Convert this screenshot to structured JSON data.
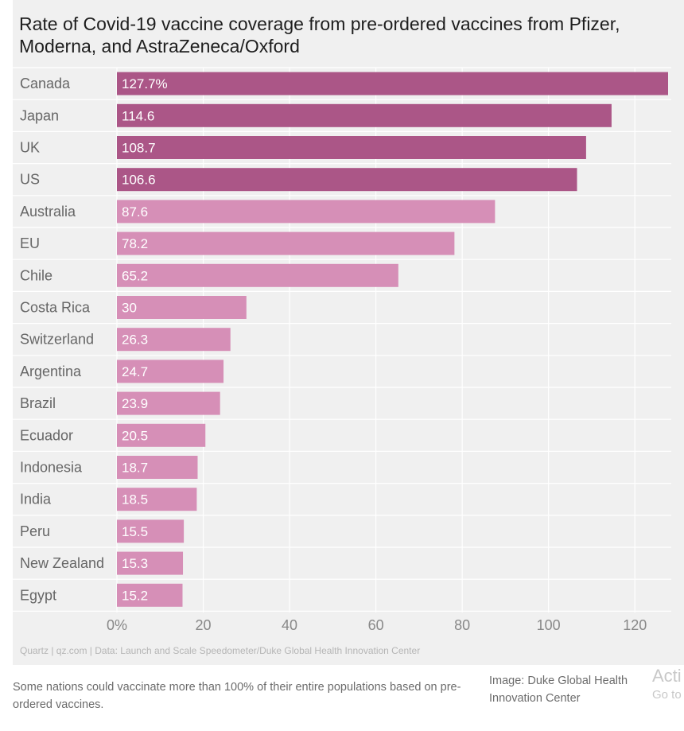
{
  "title": "Rate of Covid-19 vaccine coverage from pre-ordered vaccines from Pfizer, Moderna, and AstraZeneca/Oxford",
  "source": "Quartz | qz.com | Data: Launch and Scale Speedometer/Duke Global Health Innovation Center",
  "caption": "Some nations could vaccinate more than 100% of their entire populations based on pre-ordered vaccines.",
  "credit": "Image: Duke Global Health Innovation Center",
  "overlay": {
    "line1": "Acti",
    "line2": "Go to"
  },
  "colors": {
    "dark_bar": "#ab5687",
    "light_bar": "#d68fb7",
    "panel": "#f0f0f0",
    "grid": "#ffffff"
  },
  "chart_data": {
    "type": "bar",
    "orientation": "horizontal",
    "title": "Rate of Covid-19 vaccine coverage from pre-ordered vaccines from Pfizer, Moderna, and AstraZeneca/Oxford",
    "categories": [
      "Canada",
      "Japan",
      "UK",
      "US",
      "Australia",
      "EU",
      "Chile",
      "Costa Rica",
      "Switzerland",
      "Argentina",
      "Brazil",
      "Ecuador",
      "Indonesia",
      "India",
      "Peru",
      "New Zealand",
      "Egypt"
    ],
    "values": [
      127.7,
      114.6,
      108.7,
      106.6,
      87.6,
      78.2,
      65.2,
      30,
      26.3,
      24.7,
      23.9,
      20.5,
      18.7,
      18.5,
      15.5,
      15.3,
      15.2
    ],
    "value_labels": [
      "127.7%",
      "114.6",
      "108.7",
      "106.6",
      "87.6",
      "78.2",
      "65.2",
      "30",
      "26.3",
      "24.7",
      "23.9",
      "20.5",
      "18.7",
      "18.5",
      "15.5",
      "15.3",
      "15.2"
    ],
    "highlight_count": 4,
    "xlim": [
      0,
      127.7
    ],
    "xticks": [
      0,
      20,
      40,
      60,
      80,
      100,
      120
    ],
    "xtick_labels": [
      "0%",
      "20",
      "40",
      "60",
      "80",
      "100",
      "120"
    ],
    "grid": true
  }
}
